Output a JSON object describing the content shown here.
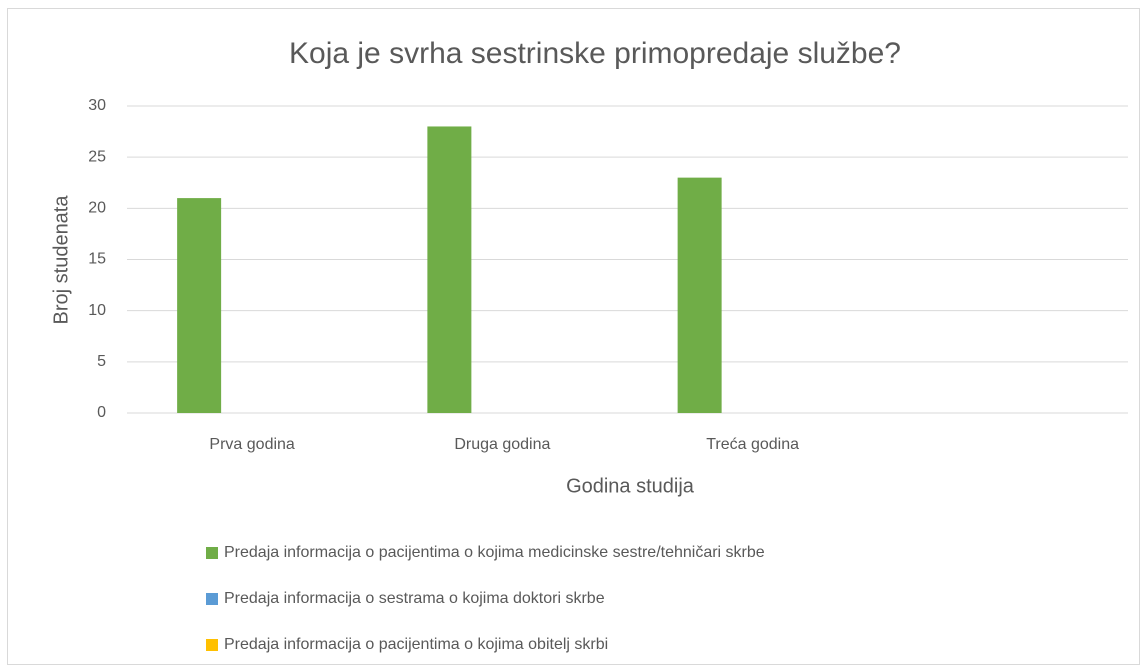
{
  "chart_data": {
    "type": "bar",
    "title": "Koja je svrha sestrinske primopredaje službe?",
    "x_label": "Godina studija",
    "y_label": "Broj studenata",
    "categories": [
      "Prva godina",
      "Druga godina",
      "Treća godina",
      null
    ],
    "series": [
      {
        "name": "Predaja informacija o pacijentima o kojima medicinske sestre/tehničari skrbe",
        "color": "#70ad47",
        "values": [
          21,
          28,
          23,
          null
        ]
      },
      {
        "name": "Predaja informacija o sestrama o kojima doktori skrbe",
        "color": "#5b9bd5",
        "values": [
          0,
          0,
          0,
          null
        ]
      },
      {
        "name": "Predaja informacija o pacijentima o kojima obitelj skrbi",
        "color": "#ffc000",
        "values": [
          0,
          0,
          0,
          null
        ]
      }
    ],
    "ylim": [
      0,
      30
    ],
    "yticks": [
      0,
      5,
      10,
      15,
      20,
      25,
      30
    ],
    "grid": true,
    "legend": "bottom"
  }
}
